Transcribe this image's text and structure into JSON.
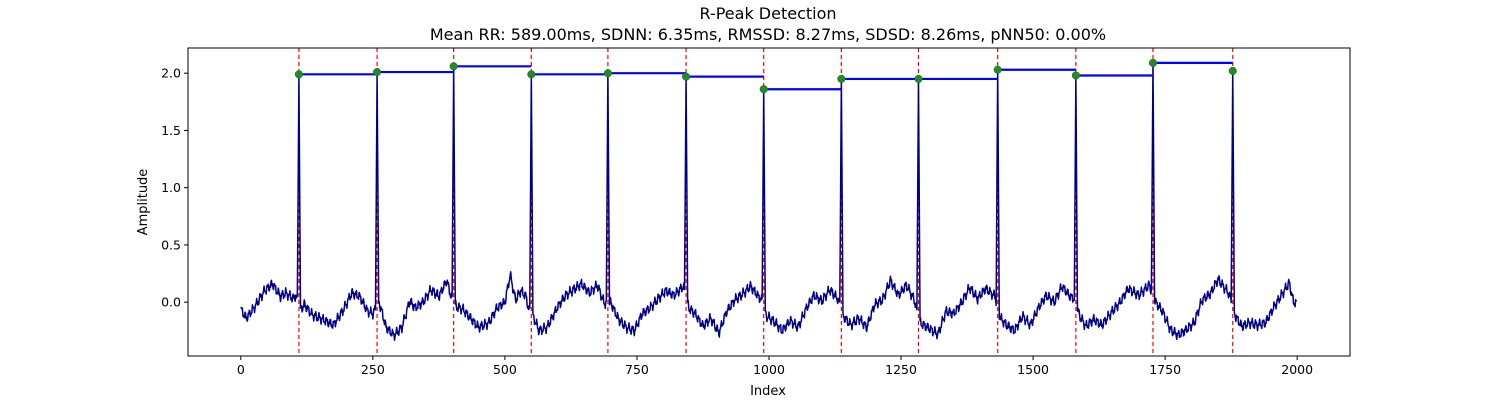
{
  "chart_data": {
    "type": "line",
    "title": "R-Peak Detection",
    "subtitle": "Mean RR: 589.00ms, SDNN: 6.35ms, RMSSD: 8.27ms, SDSD: 8.26ms, pNN50: 0.00%",
    "xlabel": "Index",
    "ylabel": "Amplitude",
    "xlim": [
      -100,
      2100
    ],
    "ylim": [
      -0.47,
      2.22
    ],
    "x_ticks": [
      0,
      250,
      500,
      750,
      1000,
      1250,
      1500,
      1750,
      2000
    ],
    "y_ticks": [
      0.0,
      0.5,
      1.0,
      1.5,
      2.0
    ],
    "x_tick_labels": [
      "0",
      "250",
      "500",
      "750",
      "1000",
      "1250",
      "1500",
      "1750",
      "2000"
    ],
    "y_tick_labels": [
      "0.0",
      "0.5",
      "1.0",
      "1.5",
      "2.0"
    ],
    "grid": false,
    "signal": {
      "color": "#00008b",
      "n": 2000,
      "baseline_points": [
        [
          0,
          -0.06
        ],
        [
          10,
          -0.14
        ],
        [
          25,
          -0.05
        ],
        [
          45,
          0.1
        ],
        [
          60,
          0.16
        ],
        [
          75,
          0.05
        ],
        [
          85,
          0.08
        ],
        [
          100,
          0.03
        ],
        [
          104,
          0.06
        ],
        [
          112,
          -0.08
        ],
        [
          120,
          -0.02
        ],
        [
          135,
          -0.11
        ],
        [
          155,
          -0.15
        ],
        [
          175,
          -0.2
        ],
        [
          195,
          -0.06
        ],
        [
          210,
          0.08
        ],
        [
          225,
          0.05
        ],
        [
          240,
          -0.08
        ],
        [
          250,
          -0.1
        ],
        [
          262,
          0.0
        ],
        [
          275,
          -0.22
        ],
        [
          290,
          -0.29
        ],
        [
          305,
          -0.22
        ],
        [
          320,
          0.01
        ],
        [
          330,
          -0.05
        ],
        [
          345,
          0.0
        ],
        [
          360,
          0.11
        ],
        [
          375,
          0.05
        ],
        [
          390,
          0.19
        ],
        [
          398,
          0.05
        ],
        [
          408,
          -0.04
        ],
        [
          420,
          -0.06
        ],
        [
          435,
          -0.14
        ],
        [
          450,
          -0.22
        ],
        [
          470,
          -0.18
        ],
        [
          485,
          -0.05
        ],
        [
          500,
          0.0
        ],
        [
          510,
          0.24
        ],
        [
          520,
          0.02
        ],
        [
          530,
          0.1
        ],
        [
          540,
          0.05
        ],
        [
          546,
          -0.08
        ],
        [
          553,
          -0.12
        ],
        [
          565,
          -0.25
        ],
        [
          580,
          -0.22
        ],
        [
          600,
          -0.04
        ],
        [
          615,
          0.06
        ],
        [
          630,
          0.11
        ],
        [
          645,
          0.16
        ],
        [
          660,
          0.08
        ],
        [
          675,
          0.15
        ],
        [
          688,
          -0.01
        ],
        [
          700,
          0.0
        ],
        [
          715,
          -0.15
        ],
        [
          730,
          -0.22
        ],
        [
          745,
          -0.25
        ],
        [
          760,
          -0.1
        ],
        [
          775,
          -0.05
        ],
        [
          790,
          0.03
        ],
        [
          805,
          0.1
        ],
        [
          820,
          0.06
        ],
        [
          838,
          0.14
        ],
        [
          848,
          -0.05
        ],
        [
          860,
          -0.1
        ],
        [
          875,
          -0.21
        ],
        [
          890,
          -0.14
        ],
        [
          905,
          -0.27
        ],
        [
          920,
          -0.08
        ],
        [
          935,
          0.02
        ],
        [
          950,
          0.07
        ],
        [
          965,
          0.14
        ],
        [
          980,
          0.05
        ],
        [
          986,
          0.02
        ],
        [
          995,
          -0.12
        ],
        [
          1010,
          -0.17
        ],
        [
          1025,
          -0.25
        ],
        [
          1040,
          -0.16
        ],
        [
          1055,
          -0.22
        ],
        [
          1070,
          -0.06
        ],
        [
          1085,
          0.06
        ],
        [
          1100,
          0.01
        ],
        [
          1115,
          0.11
        ],
        [
          1130,
          0.03
        ],
        [
          1140,
          -0.12
        ],
        [
          1155,
          -0.2
        ],
        [
          1170,
          -0.14
        ],
        [
          1185,
          -0.22
        ],
        [
          1200,
          -0.02
        ],
        [
          1215,
          0.02
        ],
        [
          1230,
          0.19
        ],
        [
          1245,
          0.06
        ],
        [
          1260,
          0.15
        ],
        [
          1275,
          0.02
        ],
        [
          1286,
          -0.18
        ],
        [
          1300,
          -0.22
        ],
        [
          1320,
          -0.28
        ],
        [
          1335,
          -0.08
        ],
        [
          1350,
          -0.1
        ],
        [
          1365,
          0.0
        ],
        [
          1380,
          0.13
        ],
        [
          1395,
          0.03
        ],
        [
          1410,
          0.12
        ],
        [
          1428,
          0.05
        ],
        [
          1438,
          -0.14
        ],
        [
          1450,
          -0.2
        ],
        [
          1465,
          -0.25
        ],
        [
          1480,
          -0.12
        ],
        [
          1495,
          -0.2
        ],
        [
          1510,
          -0.05
        ],
        [
          1525,
          0.06
        ],
        [
          1540,
          0.0
        ],
        [
          1555,
          0.14
        ],
        [
          1570,
          0.05
        ],
        [
          1578,
          0.03
        ],
        [
          1588,
          -0.12
        ],
        [
          1600,
          -0.21
        ],
        [
          1615,
          -0.15
        ],
        [
          1630,
          -0.2
        ],
        [
          1650,
          -0.08
        ],
        [
          1665,
          0.0
        ],
        [
          1680,
          0.12
        ],
        [
          1700,
          0.06
        ],
        [
          1720,
          0.15
        ],
        [
          1732,
          0.0
        ],
        [
          1745,
          -0.08
        ],
        [
          1760,
          -0.24
        ],
        [
          1775,
          -0.29
        ],
        [
          1790,
          -0.24
        ],
        [
          1805,
          -0.18
        ],
        [
          1820,
          0.02
        ],
        [
          1835,
          0.07
        ],
        [
          1850,
          0.2
        ],
        [
          1870,
          0.08
        ],
        [
          1876,
          0.0
        ],
        [
          1883,
          -0.12
        ],
        [
          1895,
          -0.21
        ],
        [
          1910,
          -0.18
        ],
        [
          1925,
          -0.2
        ],
        [
          1940,
          -0.18
        ],
        [
          1955,
          -0.05
        ],
        [
          1970,
          0.06
        ],
        [
          1985,
          0.17
        ],
        [
          1993,
          0.0
        ],
        [
          1999,
          -0.01
        ]
      ]
    },
    "r_peaks": {
      "marker_color": "#228b22",
      "line_color": "#ff0000",
      "x": [
        110,
        258,
        403,
        550,
        695,
        843,
        990,
        1137,
        1283,
        1433,
        1581,
        1727,
        1878
      ],
      "y": [
        1.99,
        2.01,
        2.06,
        1.99,
        2.0,
        1.97,
        1.86,
        1.95,
        1.95,
        2.03,
        1.98,
        2.09,
        2.02
      ]
    },
    "rr_segments": {
      "color": "#0000ff"
    }
  }
}
